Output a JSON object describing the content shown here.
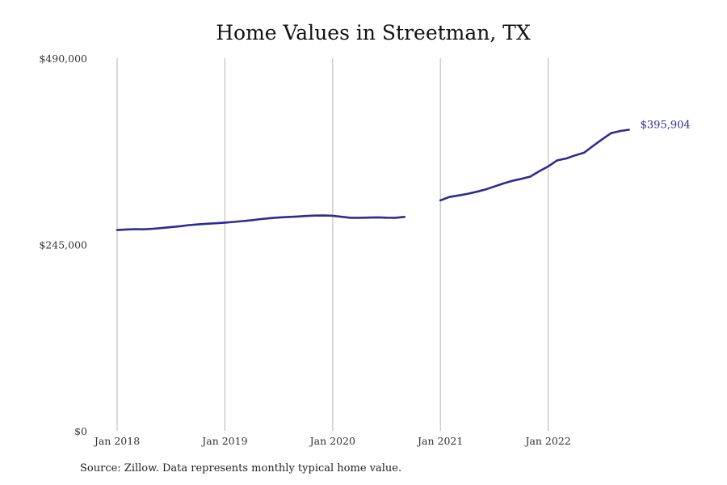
{
  "title": "Home Values in Streetman, TX",
  "source": "Source: Zillow. Data represents monthly typical home value.",
  "colors": {
    "line": "#2e2b8f",
    "grid": "#b5b5b5",
    "text": "#333333"
  },
  "chart_data": {
    "type": "line",
    "title": "Home Values in Streetman, TX",
    "xlabel": "",
    "ylabel": "",
    "x_ticks": [
      "Jan 2018",
      "Jan 2019",
      "Jan 2020",
      "Jan 2021",
      "Jan 2022"
    ],
    "y_ticks": [
      {
        "value": 0,
        "label": "$0"
      },
      {
        "value": 245000,
        "label": "$245,000"
      },
      {
        "value": 490000,
        "label": "$490,000"
      }
    ],
    "ylim": [
      0,
      490000
    ],
    "xlim": [
      "2018-01",
      "2022-12"
    ],
    "grid": "vertical at yearly ticks",
    "end_label": "$395,904",
    "series": [
      {
        "segments": [
          {
            "points": [
              [
                "2018-01",
                264000
              ],
              [
                "2018-02",
                264800
              ],
              [
                "2018-03",
                265200
              ],
              [
                "2018-04",
                265000
              ],
              [
                "2018-05",
                265700
              ],
              [
                "2018-06",
                266700
              ],
              [
                "2018-07",
                268000
              ],
              [
                "2018-08",
                269000
              ],
              [
                "2018-09",
                270500
              ],
              [
                "2018-10",
                271500
              ],
              [
                "2018-11",
                272300
              ],
              [
                "2018-12",
                273000
              ],
              [
                "2019-01",
                273800
              ],
              [
                "2019-02",
                274800
              ],
              [
                "2019-03",
                275800
              ],
              [
                "2019-04",
                277000
              ],
              [
                "2019-05",
                278500
              ],
              [
                "2019-06",
                279700
              ],
              [
                "2019-07",
                280500
              ],
              [
                "2019-08",
                281200
              ],
              [
                "2019-09",
                281800
              ],
              [
                "2019-10",
                282500
              ],
              [
                "2019-11",
                283000
              ],
              [
                "2019-12",
                283200
              ],
              [
                "2020-01",
                282800
              ],
              [
                "2020-02",
                281500
              ],
              [
                "2020-03",
                280200
              ],
              [
                "2020-04",
                280200
              ],
              [
                "2020-05",
                280400
              ],
              [
                "2020-06",
                280700
              ],
              [
                "2020-07",
                280300
              ],
              [
                "2020-08",
                280200
              ],
              [
                "2020-09",
                281300
              ]
            ]
          },
          {
            "points": [
              [
                "2021-01",
                303000
              ],
              [
                "2021-02",
                307500
              ],
              [
                "2021-03",
                309500
              ],
              [
                "2021-04",
                311500
              ],
              [
                "2021-05",
                314300
              ],
              [
                "2021-06",
                317300
              ],
              [
                "2021-07",
                321200
              ],
              [
                "2021-08",
                325300
              ],
              [
                "2021-09",
                328800
              ],
              [
                "2021-10",
                331300
              ],
              [
                "2021-11",
                334300
              ],
              [
                "2021-12",
                341300
              ],
              [
                "2022-01",
                347700
              ],
              [
                "2022-02",
                355600
              ],
              [
                "2022-03",
                358100
              ],
              [
                "2022-04",
                362200
              ],
              [
                "2022-05",
                365700
              ],
              [
                "2022-06",
                374700
              ],
              [
                "2022-07",
                383300
              ],
              [
                "2022-08",
                391400
              ],
              [
                "2022-09",
                394200
              ],
              [
                "2022-10",
                395904
              ]
            ]
          }
        ]
      }
    ]
  }
}
